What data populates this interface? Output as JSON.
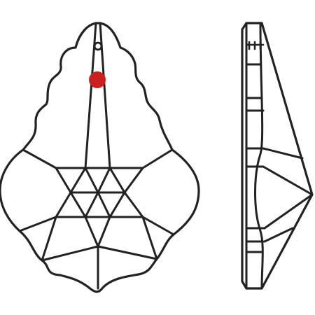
{
  "colors": {
    "background": "#ffffff",
    "line": "#222222",
    "hole_marker": "#cc1f1f"
  },
  "icons": {
    "front_view": "crystal-pendant-front-icon",
    "side_view": "crystal-pendant-side-icon",
    "marker": "red-hole-marker-icon"
  }
}
